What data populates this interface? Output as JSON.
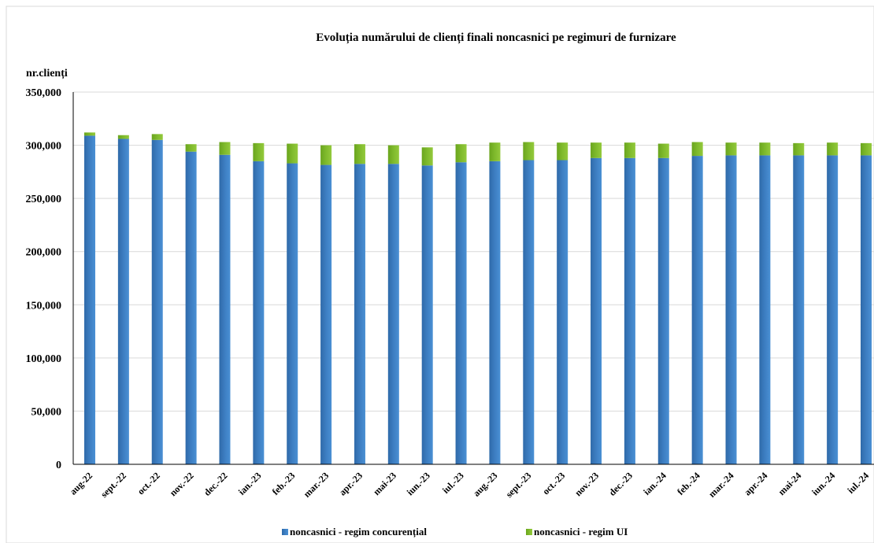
{
  "chart_data": {
    "type": "bar",
    "stacked": true,
    "title": "Evoluția numărului de clienți finali noncasnici pe regimuri de furnizare",
    "ylabel": "nr.clienți",
    "xlabel": "",
    "ylim": [
      0,
      350000
    ],
    "yticks": [
      0,
      50000,
      100000,
      150000,
      200000,
      250000,
      300000,
      350000
    ],
    "ytick_labels": [
      "0",
      "50,000",
      "100,000",
      "150,000",
      "200,000",
      "250,000",
      "300,000",
      "350,000"
    ],
    "grid": true,
    "legend_position": "bottom",
    "categories": [
      "aug-22",
      "sept.-22",
      "oct.-22",
      "nov.-22",
      "dec.-22",
      "ian.-23",
      "feb.-23",
      "mar.-23",
      "apr.-23",
      "mai-23",
      "iun.-23",
      "iul.-23",
      "aug.-23",
      "sept.-23",
      "oct.-23",
      "nov.-23",
      "dec.-23",
      "ian.-24",
      "feb.-24",
      "mar.-24",
      "apr.-24",
      "mai-24",
      "iun.-24",
      "iul.-24"
    ],
    "series": [
      {
        "name": "noncasnici - regim concurențial",
        "color": "#3d7ec2",
        "values": [
          309000,
          306000,
          305000,
          294000,
          291000,
          285000,
          283000,
          281500,
          282500,
          282500,
          281000,
          284000,
          285000,
          286000,
          286000,
          288000,
          288000,
          288000,
          290000,
          290500,
          290500,
          290500,
          290500,
          290500
        ]
      },
      {
        "name": "noncasnici - regim UI",
        "color": "#7fba2c",
        "values": [
          3000,
          3500,
          5500,
          7000,
          12000,
          17000,
          18500,
          18500,
          18500,
          17500,
          17000,
          17000,
          17500,
          17000,
          16500,
          14500,
          14500,
          13500,
          13000,
          12000,
          12000,
          11500,
          12000,
          11500
        ]
      }
    ]
  }
}
